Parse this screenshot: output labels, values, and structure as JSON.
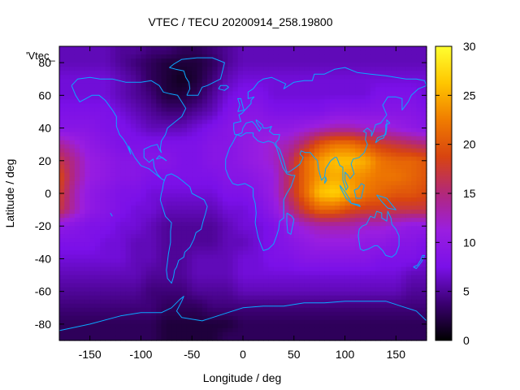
{
  "chart_data": {
    "type": "heatmap",
    "title": "VTEC / TECU 20200914_258.19800",
    "xlabel": "Longitude / deg",
    "ylabel": "Latitude / deg",
    "series_key_label": "'Vtec_",
    "xlim": [
      -180,
      180
    ],
    "ylim": [
      -90,
      90
    ],
    "x_ticks": [
      -150,
      -100,
      -50,
      0,
      50,
      100,
      150
    ],
    "y_ticks": [
      -80,
      -60,
      -40,
      -20,
      0,
      20,
      40,
      60,
      80
    ],
    "colorbar": {
      "min": 0,
      "max": 30,
      "ticks": [
        0,
        5,
        10,
        15,
        20,
        25,
        30
      ],
      "palette": [
        "#000000",
        "#3a0070",
        "#7a10e8",
        "#9a1ee0",
        "#b2287a",
        "#d84410",
        "#f07c00",
        "#ffc600",
        "#ffff30"
      ]
    },
    "grid": false,
    "legend": "top-left",
    "coastline_color": "#0aa8ff",
    "data_description": "Global vertical total electron content map; maxima of ~24-28 TECU over South/East Asia and Indian Ocean (lon 60-180, lat -15 to 30), secondary ~16-20 TECU region near lon -180 to -160, minima ~1-3 TECU over North America/Greenland and Antarctica.",
    "lon_grid": [
      -180,
      -165,
      -150,
      -135,
      -120,
      -105,
      -90,
      -75,
      -60,
      -45,
      -30,
      -15,
      0,
      15,
      30,
      45,
      60,
      75,
      90,
      105,
      120,
      135,
      150,
      165,
      180
    ],
    "lat_grid": [
      87.5,
      80,
      70,
      60,
      50,
      40,
      30,
      20,
      10,
      0,
      -10,
      -20,
      -30,
      -40,
      -50,
      -60,
      -70,
      -80,
      -87.5
    ],
    "values": [
      [
        6,
        6,
        6,
        6,
        5,
        5,
        4,
        4,
        3,
        3,
        4,
        5,
        6,
        6,
        6,
        6,
        6,
        6,
        6,
        6,
        6,
        6,
        6,
        6,
        6
      ],
      [
        6,
        6,
        6,
        6,
        5,
        4,
        3,
        2,
        2,
        2,
        3,
        5,
        6,
        6,
        6,
        6,
        6,
        6,
        6,
        6,
        6,
        6,
        6,
        6,
        6
      ],
      [
        7,
        7,
        7,
        7,
        6,
        5,
        3,
        2,
        1,
        2,
        4,
        6,
        7,
        7,
        7,
        7,
        7,
        7,
        7,
        7,
        7,
        7,
        7,
        7,
        7
      ],
      [
        7,
        7,
        7,
        7,
        6,
        5,
        4,
        2,
        2,
        3,
        5,
        7,
        8,
        8,
        7,
        7,
        7,
        7,
        7,
        7,
        7,
        8,
        8,
        8,
        7
      ],
      [
        8,
        8,
        8,
        8,
        7,
        6,
        5,
        4,
        4,
        5,
        6,
        8,
        9,
        9,
        8,
        8,
        8,
        8,
        9,
        9,
        9,
        9,
        9,
        9,
        8
      ],
      [
        9,
        9,
        9,
        8,
        8,
        7,
        6,
        6,
        6,
        7,
        8,
        9,
        10,
        10,
        10,
        10,
        11,
        12,
        13,
        13,
        12,
        12,
        11,
        10,
        9
      ],
      [
        14,
        12,
        10,
        9,
        8,
        8,
        8,
        8,
        8,
        8,
        9,
        9,
        10,
        11,
        12,
        13,
        16,
        20,
        22,
        22,
        20,
        18,
        17,
        16,
        15
      ],
      [
        17,
        14,
        11,
        10,
        9,
        9,
        9,
        9,
        8,
        8,
        9,
        9,
        10,
        11,
        12,
        15,
        21,
        24,
        26,
        26,
        25,
        22,
        21,
        21,
        20
      ],
      [
        19,
        14,
        11,
        10,
        9,
        9,
        8,
        8,
        8,
        8,
        8,
        9,
        9,
        10,
        11,
        16,
        21,
        24,
        25,
        24,
        23,
        22,
        22,
        21,
        20
      ],
      [
        18,
        13,
        10,
        9,
        8,
        8,
        7,
        7,
        7,
        7,
        7,
        8,
        8,
        9,
        11,
        16,
        21,
        26,
        27,
        25,
        22,
        21,
        20,
        20,
        19
      ],
      [
        17,
        13,
        10,
        9,
        8,
        7,
        7,
        6,
        6,
        6,
        6,
        7,
        7,
        8,
        10,
        14,
        18,
        21,
        21,
        19,
        18,
        18,
        17,
        17,
        17
      ],
      [
        10,
        9,
        8,
        8,
        7,
        7,
        6,
        5,
        5,
        5,
        5,
        6,
        7,
        7,
        8,
        10,
        12,
        13,
        13,
        13,
        12,
        12,
        11,
        10,
        10
      ],
      [
        8,
        8,
        8,
        7,
        7,
        6,
        6,
        5,
        5,
        5,
        5,
        6,
        6,
        7,
        8,
        9,
        10,
        11,
        11,
        11,
        10,
        10,
        9,
        9,
        8
      ],
      [
        7,
        7,
        7,
        7,
        7,
        6,
        6,
        5,
        5,
        6,
        6,
        6,
        7,
        7,
        8,
        8,
        9,
        9,
        9,
        9,
        9,
        8,
        8,
        8,
        7
      ],
      [
        6,
        6,
        6,
        6,
        6,
        6,
        5,
        5,
        5,
        6,
        6,
        6,
        7,
        7,
        7,
        7,
        7,
        7,
        7,
        7,
        7,
        7,
        7,
        6,
        6
      ],
      [
        5,
        5,
        5,
        5,
        5,
        5,
        4,
        4,
        4,
        5,
        5,
        5,
        6,
        6,
        6,
        6,
        6,
        6,
        6,
        6,
        6,
        6,
        6,
        5,
        5
      ],
      [
        4,
        4,
        4,
        4,
        4,
        4,
        4,
        3,
        3,
        3,
        4,
        4,
        4,
        4,
        4,
        4,
        4,
        4,
        4,
        4,
        4,
        4,
        4,
        4,
        4
      ],
      [
        3,
        3,
        3,
        3,
        3,
        3,
        3,
        2,
        2,
        2,
        2,
        2,
        3,
        3,
        3,
        3,
        3,
        3,
        3,
        3,
        3,
        3,
        3,
        3,
        3
      ],
      [
        3,
        3,
        3,
        3,
        3,
        3,
        3,
        2,
        2,
        2,
        2,
        3,
        3,
        3,
        3,
        3,
        3,
        3,
        3,
        3,
        3,
        3,
        3,
        3,
        3
      ]
    ]
  }
}
